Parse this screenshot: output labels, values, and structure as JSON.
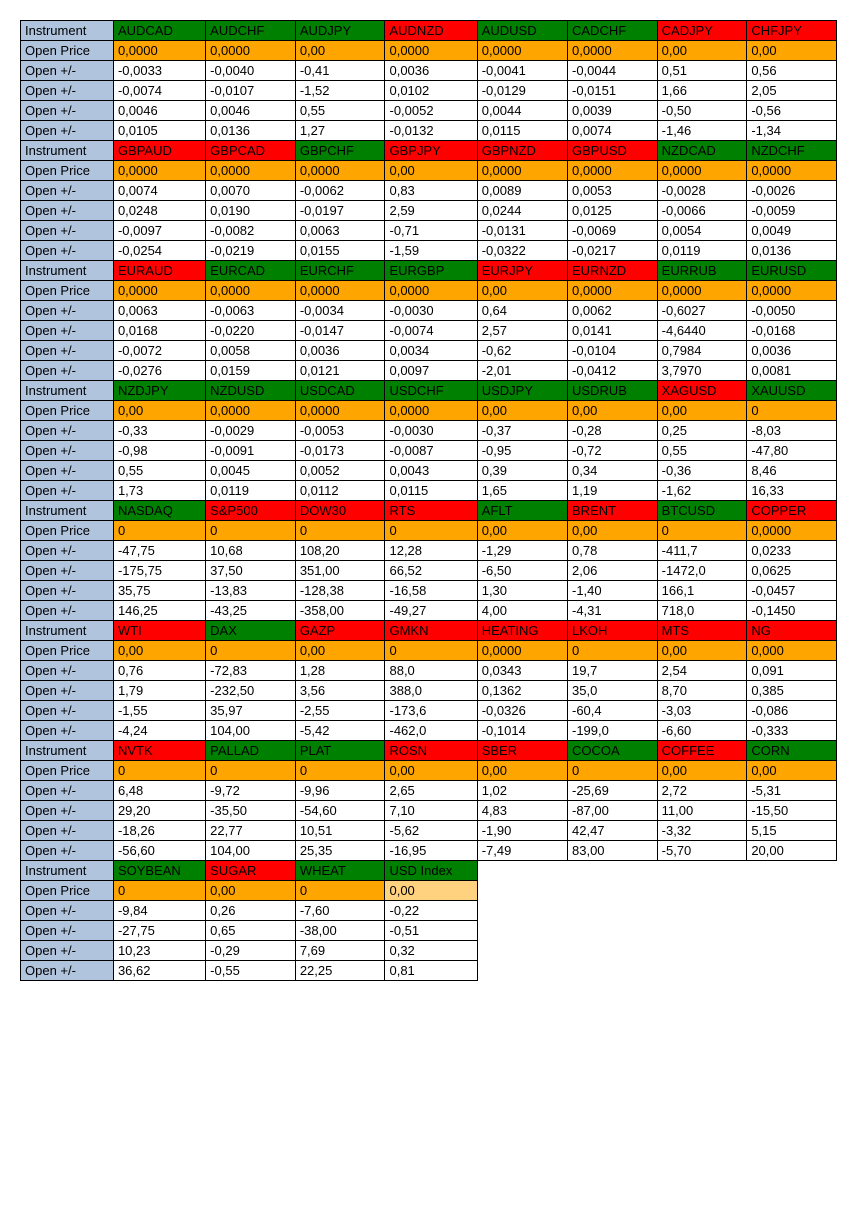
{
  "labels": {
    "instrument": "Instrument",
    "open_price": "Open Price",
    "open_pm": "Open +/-"
  },
  "colors": {
    "label_bg": "#b0c4de",
    "green_bg": "#008000",
    "red_bg": "#ff0000",
    "orange_bg": "#ffa500",
    "orange_light_bg": "#ffd27f",
    "white_bg": "#ffffff",
    "border": "#000000",
    "text": "#000000"
  },
  "blocks": [
    {
      "headers": [
        {
          "name": "AUDCAD",
          "color": "green"
        },
        {
          "name": "AUDCHF",
          "color": "green"
        },
        {
          "name": "AUDJPY",
          "color": "green"
        },
        {
          "name": "AUDNZD",
          "color": "red"
        },
        {
          "name": "AUDUSD",
          "color": "green"
        },
        {
          "name": "CADCHF",
          "color": "green"
        },
        {
          "name": "CADJPY",
          "color": "red"
        },
        {
          "name": "CHFJPY",
          "color": "red"
        }
      ],
      "open_price": [
        "0,0000",
        "0,0000",
        "0,00",
        "0,0000",
        "0,0000",
        "0,0000",
        "0,00",
        "0,00"
      ],
      "rows": [
        [
          "-0,0033",
          "-0,0040",
          "-0,41",
          "0,0036",
          "-0,0041",
          "-0,0044",
          "0,51",
          "0,56"
        ],
        [
          "-0,0074",
          "-0,0107",
          "-1,52",
          "0,0102",
          "-0,0129",
          "-0,0151",
          "1,66",
          "2,05"
        ],
        [
          "0,0046",
          "0,0046",
          "0,55",
          "-0,0052",
          "0,0044",
          "0,0039",
          "-0,50",
          "-0,56"
        ],
        [
          "0,0105",
          "0,0136",
          "1,27",
          "-0,0132",
          "0,0115",
          "0,0074",
          "-1,46",
          "-1,34"
        ]
      ]
    },
    {
      "headers": [
        {
          "name": "GBPAUD",
          "color": "red"
        },
        {
          "name": "GBPCAD",
          "color": "red"
        },
        {
          "name": "GBPCHF",
          "color": "green"
        },
        {
          "name": "GBPJPY",
          "color": "red"
        },
        {
          "name": "GBPNZD",
          "color": "red"
        },
        {
          "name": "GBPUSD",
          "color": "red"
        },
        {
          "name": "NZDCAD",
          "color": "green"
        },
        {
          "name": "NZDCHF",
          "color": "green"
        }
      ],
      "open_price": [
        "0,0000",
        "0,0000",
        "0,0000",
        "0,00",
        "0,0000",
        "0,0000",
        "0,0000",
        "0,0000"
      ],
      "rows": [
        [
          "0,0074",
          "0,0070",
          "-0,0062",
          "0,83",
          "0,0089",
          "0,0053",
          "-0,0028",
          "-0,0026"
        ],
        [
          "0,0248",
          "0,0190",
          "-0,0197",
          "2,59",
          "0,0244",
          "0,0125",
          "-0,0066",
          "-0,0059"
        ],
        [
          "-0,0097",
          "-0,0082",
          "0,0063",
          "-0,71",
          "-0,0131",
          "-0,0069",
          "0,0054",
          "0,0049"
        ],
        [
          "-0,0254",
          "-0,0219",
          "0,0155",
          "-1,59",
          "-0,0322",
          "-0,0217",
          "0,0119",
          "0,0136"
        ]
      ]
    },
    {
      "headers": [
        {
          "name": "EURAUD",
          "color": "red"
        },
        {
          "name": "EURCAD",
          "color": "green"
        },
        {
          "name": "EURCHF",
          "color": "green"
        },
        {
          "name": "EURGBP",
          "color": "green"
        },
        {
          "name": "EURJPY",
          "color": "red"
        },
        {
          "name": "EURNZD",
          "color": "red"
        },
        {
          "name": "EURRUB",
          "color": "green"
        },
        {
          "name": "EURUSD",
          "color": "green"
        }
      ],
      "open_price": [
        "0,0000",
        "0,0000",
        "0,0000",
        "0,0000",
        "0,00",
        "0,0000",
        "0,0000",
        "0,0000"
      ],
      "rows": [
        [
          "0,0063",
          "-0,0063",
          "-0,0034",
          "-0,0030",
          "0,64",
          "0,0062",
          "-0,6027",
          "-0,0050"
        ],
        [
          "0,0168",
          "-0,0220",
          "-0,0147",
          "-0,0074",
          "2,57",
          "0,0141",
          "-4,6440",
          "-0,0168"
        ],
        [
          "-0,0072",
          "0,0058",
          "0,0036",
          "0,0034",
          "-0,62",
          "-0,0104",
          "0,7984",
          "0,0036"
        ],
        [
          "-0,0276",
          "0,0159",
          "0,0121",
          "0,0097",
          "-2,01",
          "-0,0412",
          "3,7970",
          "0,0081"
        ]
      ]
    },
    {
      "headers": [
        {
          "name": "NZDJPY",
          "color": "green"
        },
        {
          "name": "NZDUSD",
          "color": "green"
        },
        {
          "name": "USDCAD",
          "color": "green"
        },
        {
          "name": "USDCHF",
          "color": "green"
        },
        {
          "name": "USDJPY",
          "color": "green"
        },
        {
          "name": "USDRUB",
          "color": "green"
        },
        {
          "name": "XAGUSD",
          "color": "red"
        },
        {
          "name": "XAUUSD",
          "color": "green"
        }
      ],
      "open_price": [
        "0,00",
        "0,0000",
        "0,0000",
        "0,0000",
        "0,00",
        "0,00",
        "0,00",
        "0"
      ],
      "rows": [
        [
          "-0,33",
          "-0,0029",
          "-0,0053",
          "-0,0030",
          "-0,37",
          "-0,28",
          "0,25",
          "-8,03"
        ],
        [
          "-0,98",
          "-0,0091",
          "-0,0173",
          "-0,0087",
          "-0,95",
          "-0,72",
          "0,55",
          "-47,80"
        ],
        [
          "0,55",
          "0,0045",
          "0,0052",
          "0,0043",
          "0,39",
          "0,34",
          "-0,36",
          "8,46"
        ],
        [
          "1,73",
          "0,0119",
          "0,0112",
          "0,0115",
          "1,65",
          "1,19",
          "-1,62",
          "16,33"
        ]
      ]
    },
    {
      "headers": [
        {
          "name": "NASDAQ",
          "color": "green"
        },
        {
          "name": "S&P500",
          "color": "red"
        },
        {
          "name": "DOW30",
          "color": "red"
        },
        {
          "name": "RTS",
          "color": "red"
        },
        {
          "name": "AFLT",
          "color": "green"
        },
        {
          "name": "BRENT",
          "color": "red"
        },
        {
          "name": "BTCUSD",
          "color": "green"
        },
        {
          "name": "COPPER",
          "color": "red"
        }
      ],
      "open_price": [
        "0",
        "0",
        "0",
        "0",
        "0,00",
        "0,00",
        "0",
        "0,0000"
      ],
      "rows": [
        [
          "-47,75",
          "10,68",
          "108,20",
          "12,28",
          "-1,29",
          "0,78",
          "-411,7",
          "0,0233"
        ],
        [
          "-175,75",
          "37,50",
          "351,00",
          "66,52",
          "-6,50",
          "2,06",
          "-1472,0",
          "0,0625"
        ],
        [
          "35,75",
          "-13,83",
          "-128,38",
          "-16,58",
          "1,30",
          "-1,40",
          "166,1",
          "-0,0457"
        ],
        [
          "146,25",
          "-43,25",
          "-358,00",
          "-49,27",
          "4,00",
          "-4,31",
          "718,0",
          "-0,1450"
        ]
      ]
    },
    {
      "headers": [
        {
          "name": "WTI",
          "color": "red"
        },
        {
          "name": "DAX",
          "color": "green"
        },
        {
          "name": "GAZP",
          "color": "red"
        },
        {
          "name": "GMKN",
          "color": "red"
        },
        {
          "name": "HEATING",
          "color": "red"
        },
        {
          "name": "LKOH",
          "color": "red"
        },
        {
          "name": "MTS",
          "color": "red"
        },
        {
          "name": "NG",
          "color": "red"
        }
      ],
      "open_price": [
        "0,00",
        "0",
        "0,00",
        "0",
        "0,0000",
        "0",
        "0,00",
        "0,000"
      ],
      "rows": [
        [
          "0,76",
          "-72,83",
          "1,28",
          "88,0",
          "0,0343",
          "19,7",
          "2,54",
          "0,091"
        ],
        [
          "1,79",
          "-232,50",
          "3,56",
          "388,0",
          "0,1362",
          "35,0",
          "8,70",
          "0,385"
        ],
        [
          "-1,55",
          "35,97",
          "-2,55",
          "-173,6",
          "-0,0326",
          "-60,4",
          "-3,03",
          "-0,086"
        ],
        [
          "-4,24",
          "104,00",
          "-5,42",
          "-462,0",
          "-0,1014",
          "-199,0",
          "-6,60",
          "-0,333"
        ]
      ]
    },
    {
      "headers": [
        {
          "name": "NVTK",
          "color": "red"
        },
        {
          "name": "PALLAD",
          "color": "green"
        },
        {
          "name": "PLAT",
          "color": "green"
        },
        {
          "name": "ROSN",
          "color": "red"
        },
        {
          "name": "SBER",
          "color": "red"
        },
        {
          "name": "COCOA",
          "color": "green"
        },
        {
          "name": "COFFEE",
          "color": "red"
        },
        {
          "name": "CORN",
          "color": "green"
        }
      ],
      "open_price": [
        "0",
        "0",
        "0",
        "0,00",
        "0,00",
        "0",
        "0,00",
        "0,00"
      ],
      "rows": [
        [
          "6,48",
          "-9,72",
          "-9,96",
          "2,65",
          "1,02",
          "-25,69",
          "2,72",
          "-5,31"
        ],
        [
          "29,20",
          "-35,50",
          "-54,60",
          "7,10",
          "4,83",
          "-87,00",
          "11,00",
          "-15,50"
        ],
        [
          "-18,26",
          "22,77",
          "10,51",
          "-5,62",
          "-1,90",
          "42,47",
          "-3,32",
          "5,15"
        ],
        [
          "-56,60",
          "104,00",
          "25,35",
          "-16,95",
          "-7,49",
          "83,00",
          "-5,70",
          "20,00"
        ]
      ]
    },
    {
      "headers": [
        {
          "name": "SOYBEAN",
          "color": "green"
        },
        {
          "name": "SUGAR",
          "color": "red"
        },
        {
          "name": "WHEAT",
          "color": "green"
        },
        {
          "name": "USD Index",
          "color": "green"
        }
      ],
      "open_price": [
        "0",
        "0,00",
        "0",
        "0,00"
      ],
      "open_price_special_last": true,
      "rows": [
        [
          "-9,84",
          "0,26",
          "-7,60",
          "-0,22"
        ],
        [
          "-27,75",
          "0,65",
          "-38,00",
          "-0,51"
        ],
        [
          "10,23",
          "-0,29",
          "7,69",
          "0,32"
        ],
        [
          "36,62",
          "-0,55",
          "22,25",
          "0,81"
        ]
      ]
    }
  ]
}
